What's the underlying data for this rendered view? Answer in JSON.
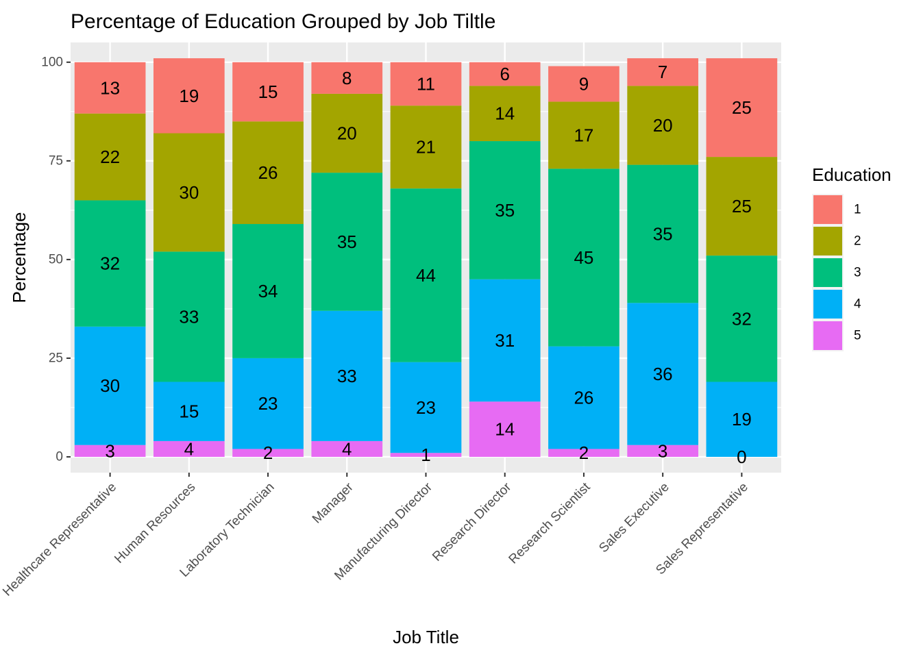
{
  "chart_data": {
    "type": "bar",
    "stacked": true,
    "title": "Percentage of Education Grouped by Job Tiltle",
    "xlabel": "Job Title",
    "ylabel": "Percentage",
    "ylim": [
      -4,
      105
    ],
    "yticks": [
      0,
      25,
      50,
      75,
      100
    ],
    "grid": true,
    "legend": {
      "title": "Education",
      "position": "right"
    },
    "categories": [
      "Healthcare Representative",
      "Human Resources",
      "Laboratory Technician",
      "Manager",
      "Manufacturing Director",
      "Research Director",
      "Research Scientist",
      "Sales Executive",
      "Sales Representative"
    ],
    "series": [
      {
        "name": "1",
        "color": "#F8766D",
        "values": [
          13,
          19,
          15,
          8,
          11,
          6,
          9,
          7,
          25
        ]
      },
      {
        "name": "2",
        "color": "#A3A500",
        "values": [
          22,
          30,
          26,
          20,
          21,
          14,
          17,
          20,
          25
        ]
      },
      {
        "name": "3",
        "color": "#00BF7D",
        "values": [
          32,
          33,
          34,
          35,
          44,
          35,
          45,
          35,
          32
        ]
      },
      {
        "name": "4",
        "color": "#00B0F6",
        "values": [
          30,
          15,
          23,
          33,
          23,
          31,
          26,
          36,
          19
        ]
      },
      {
        "name": "5",
        "color": "#E76BF3",
        "values": [
          3,
          4,
          2,
          4,
          1,
          14,
          2,
          3,
          0
        ]
      }
    ]
  }
}
